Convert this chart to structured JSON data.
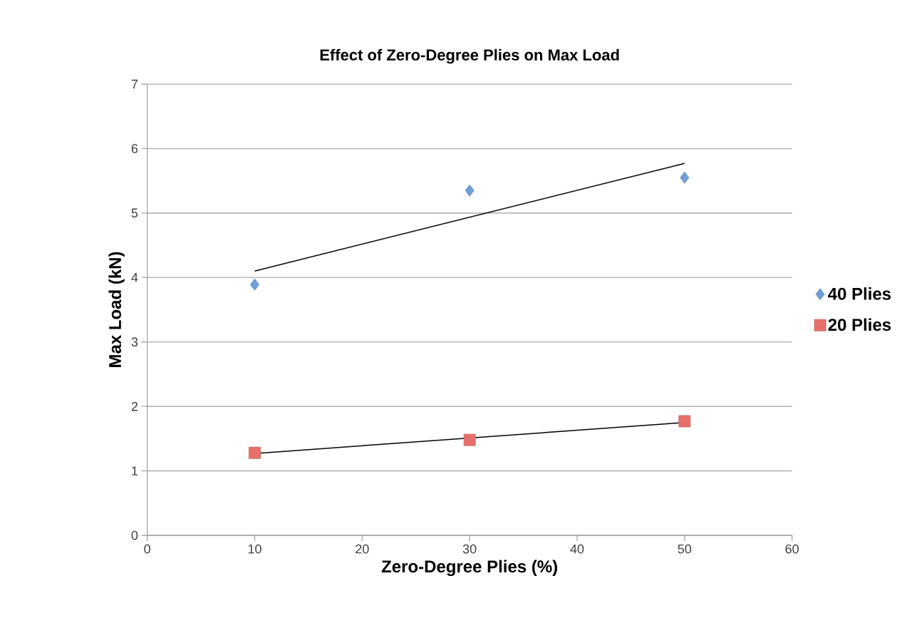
{
  "chart_data": {
    "type": "scatter",
    "title": "Effect of Zero-Degree Plies on Max Load",
    "xlabel": "Zero-Degree Plies (%)",
    "ylabel": "Max Load (kN)",
    "xlim": [
      0,
      60
    ],
    "xticks": [
      0,
      10,
      20,
      30,
      40,
      50,
      60
    ],
    "ylim": [
      0,
      7
    ],
    "yticks": [
      0,
      1,
      2,
      3,
      4,
      5,
      6,
      7
    ],
    "grid": "y",
    "legend": "right",
    "series": [
      {
        "name": "40 Plies",
        "color": "#6f9fd8",
        "marker": "diamond",
        "x": [
          10,
          30,
          50
        ],
        "values": [
          3.89,
          5.35,
          5.55
        ]
      },
      {
        "name": "20 Plies",
        "color": "#e8706b",
        "marker": "square",
        "x": [
          10,
          30,
          50
        ],
        "values": [
          1.28,
          1.48,
          1.77
        ]
      },
      {
        "type": "line",
        "color": "#000000",
        "x": [
          10,
          50
        ],
        "values": [
          4.1,
          5.77
        ]
      },
      {
        "type": "line",
        "color": "#000000",
        "x": [
          10,
          50
        ],
        "values": [
          1.27,
          1.75
        ]
      }
    ]
  }
}
